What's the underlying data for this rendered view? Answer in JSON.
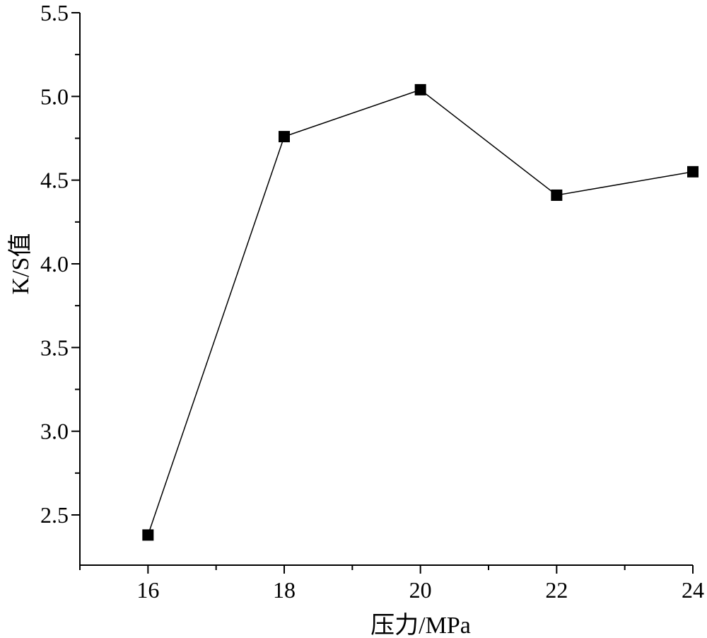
{
  "chart_data": {
    "type": "line",
    "title": "",
    "xlabel": "压力/MPa",
    "ylabel": "K/S值",
    "xlim": [
      15,
      24
    ],
    "ylim": [
      2.2,
      5.5
    ],
    "x_ticks": [
      16,
      18,
      20,
      22,
      24
    ],
    "x_tick_labels": [
      "16",
      "18",
      "20",
      "22",
      "24"
    ],
    "x_minor_ticks": [
      15,
      17,
      19,
      21,
      23
    ],
    "y_ticks": [
      2.5,
      3.0,
      3.5,
      4.0,
      4.5,
      5.0,
      5.5
    ],
    "y_tick_labels": [
      "2.5",
      "3.0",
      "3.5",
      "4.0",
      "4.5",
      "5.0",
      "5.5"
    ],
    "y_minor_ticks": [
      2.75,
      3.25,
      3.75,
      4.25,
      4.75,
      5.25
    ],
    "grid": false,
    "marker": "square",
    "series": [
      {
        "x": [
          16,
          18,
          20,
          22,
          24
        ],
        "y": [
          2.38,
          4.76,
          5.04,
          4.41,
          4.55
        ]
      }
    ]
  }
}
